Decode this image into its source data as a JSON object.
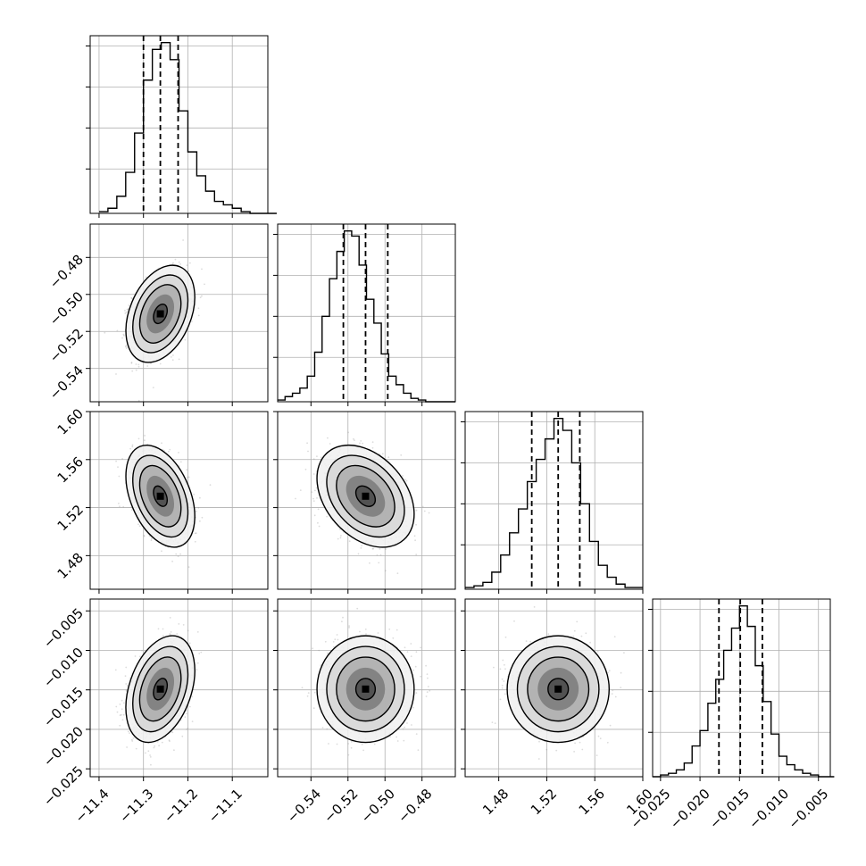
{
  "figure": {
    "type": "corner",
    "parameters": 4,
    "grid": true,
    "histogram_style": "step",
    "quantile_lines": "dashed",
    "colors": {
      "line": "#000000",
      "grid": "#b0b0b0",
      "points": "#9a9a9a",
      "density": "#333333"
    }
  },
  "chart_data": [
    {
      "type": "histogram",
      "panel": "p0",
      "x_ticks": [
        -11.4,
        -11.3,
        -11.2,
        -11.1
      ],
      "xlim": [
        -11.42,
        -11.02
      ],
      "quantiles": [
        -11.3,
        -11.262,
        -11.222
      ],
      "bin_start": -11.4,
      "bin_width": 0.02,
      "counts": [
        1,
        3,
        10,
        24,
        47,
        78,
        96,
        100,
        90,
        60,
        36,
        22,
        13,
        7,
        5,
        3,
        1,
        0,
        0,
        0
      ]
    },
    {
      "type": "histogram",
      "panel": "p1",
      "x_ticks": [
        -0.54,
        -0.52,
        -0.5,
        -0.48
      ],
      "xlim": [
        -0.558,
        -0.462
      ],
      "quantiles": [
        -0.5225,
        -0.5105,
        -0.4985
      ],
      "bin_start": -0.558,
      "bin_width": 0.004,
      "counts": [
        1,
        3,
        5,
        8,
        15,
        29,
        50,
        72,
        88,
        100,
        97,
        80,
        60,
        46,
        28,
        15,
        10,
        5,
        2,
        1,
        0,
        0,
        0,
        0
      ]
    },
    {
      "type": "histogram",
      "panel": "p2",
      "x_ticks": [
        1.48,
        1.52,
        1.56,
        1.6
      ],
      "xlim": [
        1.452,
        1.6
      ],
      "quantiles": [
        1.5075,
        1.5295,
        1.5475
      ],
      "bin_start": 1.452,
      "bin_width": 0.0074,
      "counts": [
        1,
        2,
        4,
        10,
        20,
        33,
        47,
        63,
        76,
        88,
        100,
        93,
        74,
        50,
        28,
        14,
        7,
        3,
        1,
        1
      ]
    },
    {
      "type": "histogram",
      "panel": "p3",
      "x_ticks": [
        -0.025,
        -0.02,
        -0.015,
        -0.01,
        -0.005
      ],
      "xlim": [
        -0.026,
        -0.0035
      ],
      "quantiles": [
        -0.0176,
        -0.0149,
        -0.0121
      ],
      "bin_start": -0.026,
      "bin_width": 0.001,
      "counts": [
        0,
        1,
        2,
        4,
        8,
        18,
        27,
        43,
        57,
        74,
        87,
        100,
        88,
        65,
        44,
        25,
        12,
        7,
        4,
        2,
        1,
        0,
        0
      ]
    },
    {
      "type": "scatter-density",
      "panel": "p0_p1",
      "x_ticks": [
        -11.4,
        -11.3,
        -11.2,
        -11.1
      ],
      "y_ticks": [
        -0.48,
        -0.5,
        -0.52,
        -0.54
      ],
      "xlim": [
        -11.42,
        -11.02
      ],
      "ylim": [
        -0.558,
        -0.462
      ],
      "center": [
        -11.262,
        -0.5105
      ],
      "sigma": [
        0.031,
        0.0105
      ],
      "rho": 0.35
    },
    {
      "type": "scatter-density",
      "panel": "p0_p2",
      "x_ticks": [
        -11.4,
        -11.3,
        -11.2,
        -11.1
      ],
      "y_ticks": [
        1.6,
        1.56,
        1.52,
        1.48
      ],
      "xlim": [
        -11.42,
        -11.02
      ],
      "ylim": [
        1.452,
        1.6
      ],
      "center": [
        -11.262,
        1.5295
      ],
      "sigma": [
        0.031,
        0.017
      ],
      "rho": -0.4
    },
    {
      "type": "scatter-density",
      "panel": "p1_p2",
      "x_ticks": [
        -0.54,
        -0.52,
        -0.5,
        -0.48
      ],
      "y_ticks": [
        1.6,
        1.56,
        1.52,
        1.48
      ],
      "xlim": [
        -0.558,
        -0.462
      ],
      "ylim": [
        1.452,
        1.6
      ],
      "center": [
        -0.5105,
        1.5295
      ],
      "sigma": [
        0.0105,
        0.017
      ],
      "rho": -0.35
    },
    {
      "type": "scatter-density",
      "panel": "p0_p3",
      "x_ticks": [
        -11.4,
        -11.3,
        -11.2,
        -11.1
      ],
      "y_ticks": [
        -0.005,
        -0.01,
        -0.015,
        -0.02,
        -0.025
      ],
      "xlim": [
        -11.42,
        -11.02
      ],
      "ylim": [
        -0.026,
        -0.0035
      ],
      "center": [
        -11.262,
        -0.0149
      ],
      "sigma": [
        0.031,
        0.0027
      ],
      "rho": 0.35
    },
    {
      "type": "scatter-density",
      "panel": "p1_p3",
      "x_ticks": [
        -0.54,
        -0.52,
        -0.5,
        -0.48
      ],
      "y_ticks": [
        -0.005,
        -0.01,
        -0.015,
        -0.02,
        -0.025
      ],
      "xlim": [
        -0.558,
        -0.462
      ],
      "ylim": [
        -0.026,
        -0.0035
      ],
      "center": [
        -0.5105,
        -0.0149
      ],
      "sigma": [
        0.0105,
        0.0027
      ],
      "rho": 0.0
    },
    {
      "type": "scatter-density",
      "panel": "p2_p3",
      "x_ticks": [
        1.48,
        1.52,
        1.56,
        1.6
      ],
      "y_ticks": [
        -0.005,
        -0.01,
        -0.015,
        -0.02,
        -0.025
      ],
      "xlim": [
        1.452,
        1.6
      ],
      "ylim": [
        -0.026,
        -0.0035
      ],
      "center": [
        1.5295,
        -0.0149
      ],
      "sigma": [
        0.017,
        0.0027
      ],
      "rho": 0.0
    }
  ]
}
